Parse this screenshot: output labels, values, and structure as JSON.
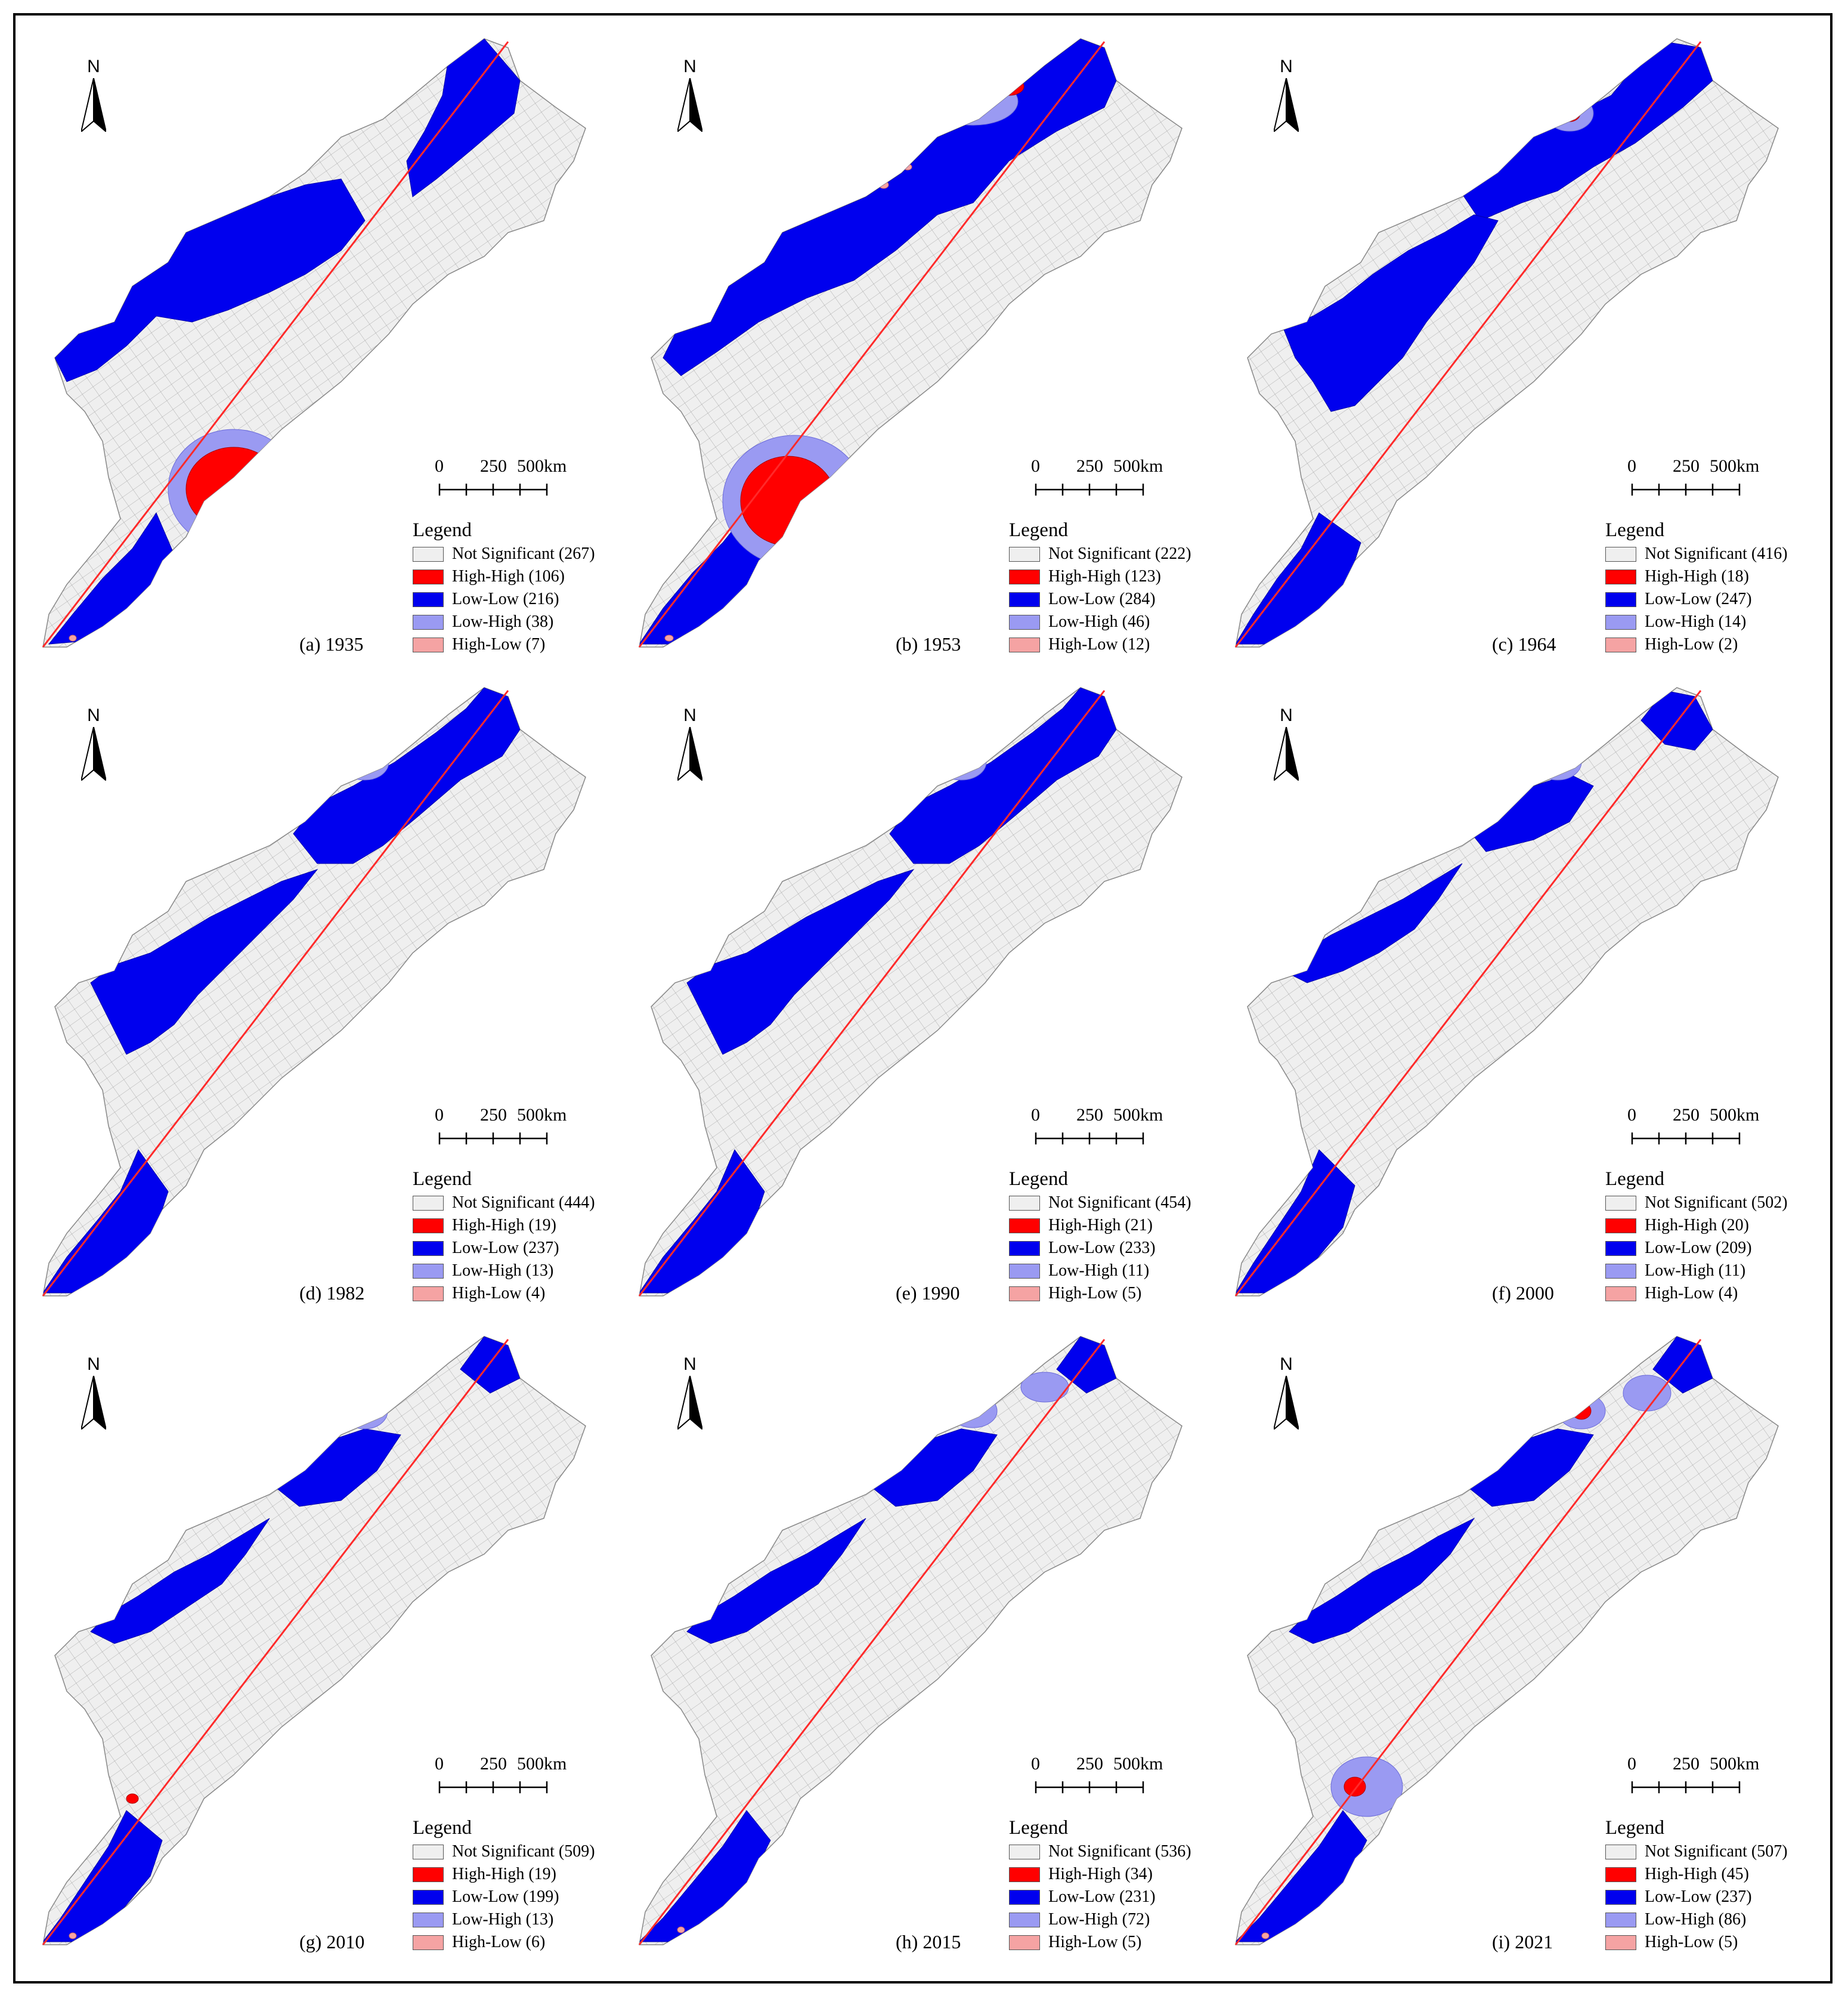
{
  "map": {
    "north_label": "N",
    "scale_labels": [
      "0",
      "250",
      "500km"
    ],
    "legend_title": "Legend",
    "colors": {
      "Not Significant": "#efefef",
      "High-High": "#ff0000",
      "Low-Low": "#0000ee",
      "Low-High": "#9a9af2",
      "High-Low": "#f5a3a3",
      "axis_line": "#ff2a2a",
      "boundaries": "#9a9a9a"
    },
    "icons": [
      "north-arrow-icon",
      "scale-bar-icon"
    ],
    "panels": [
      {
        "caption": "(a) 1935",
        "legend": [
          "Not Significant (267)",
          "High-High (106)",
          "Low-Low (216)",
          "Low-High (38)",
          "High-Low (7)"
        ]
      },
      {
        "caption": "(b) 1953",
        "legend": [
          "Not Significant (222)",
          "High-High (123)",
          "Low-Low (284)",
          "Low-High (46)",
          "High-Low (12)"
        ]
      },
      {
        "caption": "(c) 1964",
        "legend": [
          "Not Significant  (416)",
          "High-High (18)",
          "Low-Low (247)",
          "Low-High (14)",
          "High-Low (2)"
        ]
      },
      {
        "caption": "(d) 1982",
        "legend": [
          "Not Significant (444)",
          "High-High (19)",
          "Low-Low (237)",
          "Low-High (13)",
          "High-Low (4)"
        ]
      },
      {
        "caption": "(e) 1990",
        "legend": [
          "Not Significant (454)",
          "High-High (21)",
          "Low-Low (233)",
          "Low-High (11)",
          "High-Low (5)"
        ]
      },
      {
        "caption": "(f) 2000",
        "legend": [
          "Not Significant (502)",
          "High-High (20)",
          "Low-Low (209)",
          "Low-High (11)",
          "High-Low (4)"
        ]
      },
      {
        "caption": "(g) 2010",
        "legend": [
          "Not Significant (509)",
          "High-High (19)",
          "Low-Low (199)",
          "Low-High (13)",
          "High-Low (6)"
        ]
      },
      {
        "caption": "(h) 2015",
        "legend": [
          "Not Significant (536)",
          "High-High (34)",
          "Low-Low (231)",
          "Low-High (72)",
          "High-Low (5)"
        ]
      },
      {
        "caption": "(i) 2021",
        "legend": [
          "Not Significant (507)",
          "High-High (45)",
          "Low-Low (237)",
          "Low-High (86)",
          "High-Low (5)"
        ]
      }
    ]
  }
}
